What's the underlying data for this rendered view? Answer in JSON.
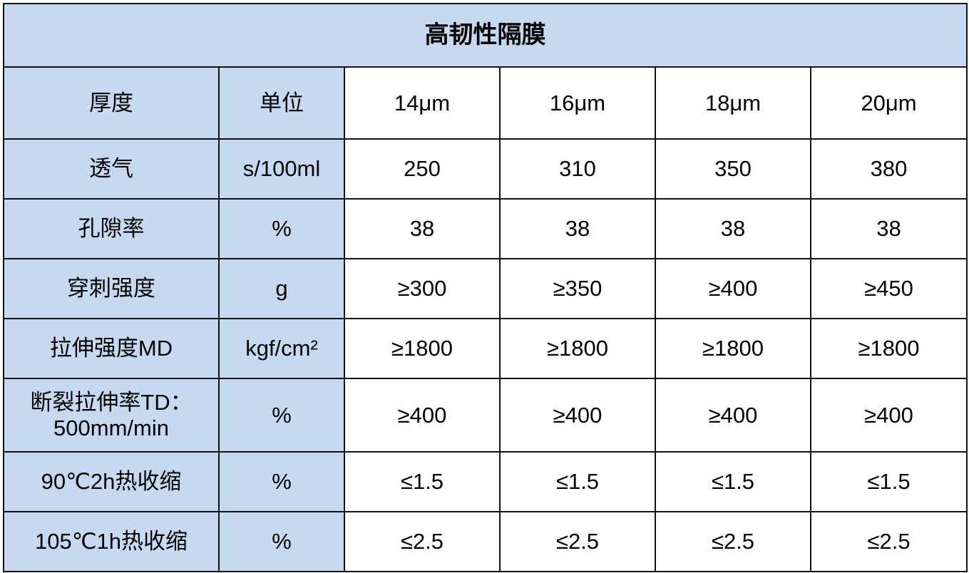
{
  "title": "高韧性隔膜",
  "header": [
    "厚度",
    "单位",
    "14μm",
    "16μm",
    "18μm",
    "20μm"
  ],
  "rows": [
    {
      "name": "透气",
      "unit": "s/100ml",
      "values": [
        "250",
        "310",
        "350",
        "380"
      ]
    },
    {
      "name": "孔隙率",
      "unit": "%",
      "values": [
        "38",
        "38",
        "38",
        "38"
      ]
    },
    {
      "name": "穿刺强度",
      "unit": "g",
      "values": [
        "≥300",
        "≥350",
        "≥400",
        "≥450"
      ]
    },
    {
      "name": "拉伸强度MD",
      "unit": "kgf/cm²",
      "values": [
        "≥1800",
        "≥1800",
        "≥1800",
        "≥1800"
      ]
    },
    {
      "name": "断裂拉伸率TD：",
      "name_line2": "500mm/min",
      "unit": "%",
      "values": [
        "≥400",
        "≥400",
        "≥400",
        "≥400"
      ]
    },
    {
      "name": "90℃2h热收缩",
      "unit": "%",
      "values": [
        "≤1.5",
        "≤1.5",
        "≤1.5",
        "≤1.5"
      ]
    },
    {
      "name": "105℃1h热收缩",
      "unit": "%",
      "values": [
        "≤2.5",
        "≤2.5",
        "≤2.5",
        "≤2.5"
      ]
    }
  ],
  "colors": {
    "header_fill": "#c6d9f0",
    "border": "#111111"
  }
}
